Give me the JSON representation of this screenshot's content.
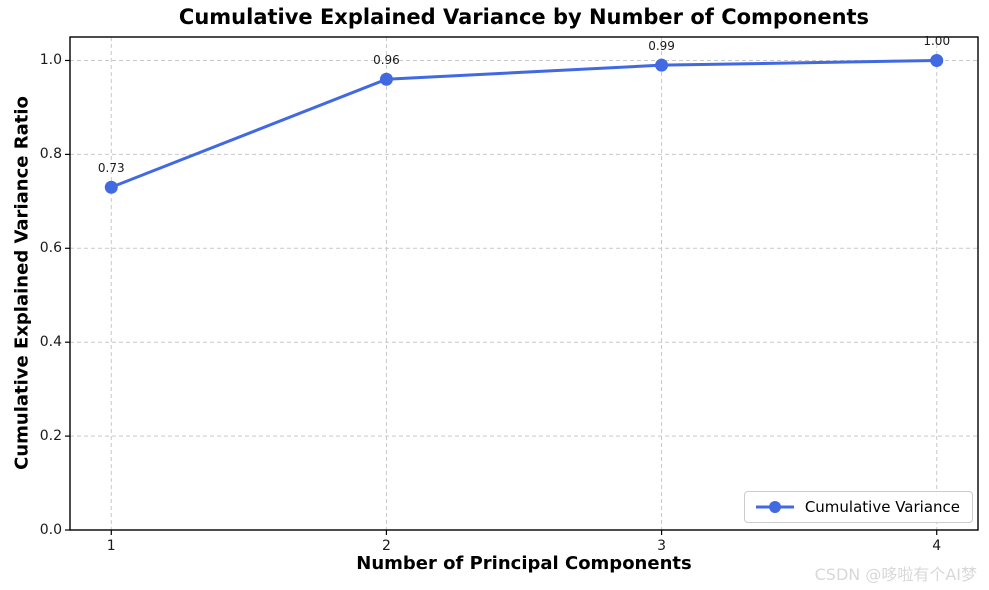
{
  "chart_data": {
    "type": "line",
    "title": "Cumulative Explained Variance by Number of Components",
    "xlabel": "Number of Principal Components",
    "ylabel": "Cumulative Explained Variance Ratio",
    "x": [
      1,
      2,
      3,
      4
    ],
    "series": [
      {
        "name": "Cumulative Variance",
        "values": [
          0.73,
          0.96,
          0.99,
          1.0
        ]
      }
    ],
    "point_labels": [
      "0.73",
      "0.96",
      "0.99",
      "1.00"
    ],
    "xticks": [
      1,
      2,
      3,
      4
    ],
    "xtick_labels": [
      "1",
      "2",
      "3",
      "4"
    ],
    "yticks": [
      0.0,
      0.2,
      0.4,
      0.6,
      0.8,
      1.0
    ],
    "ytick_labels": [
      "0.0",
      "0.2",
      "0.4",
      "0.6",
      "0.8",
      "1.0"
    ],
    "xlim": [
      0.85,
      4.15
    ],
    "ylim": [
      0,
      1.05
    ],
    "grid": true,
    "grid_style": "dashed",
    "legend_position": "lower right",
    "colors": {
      "line": "#4169e1",
      "marker": "#4169e1",
      "grid": "#c9c9c9",
      "spine": "#000000",
      "text": "#1a1a1a"
    }
  },
  "legend": {
    "label": "Cumulative Variance"
  },
  "watermark": {
    "text": "CSDN @哆啦有个AI梦",
    "color": "#d8d8d8"
  }
}
